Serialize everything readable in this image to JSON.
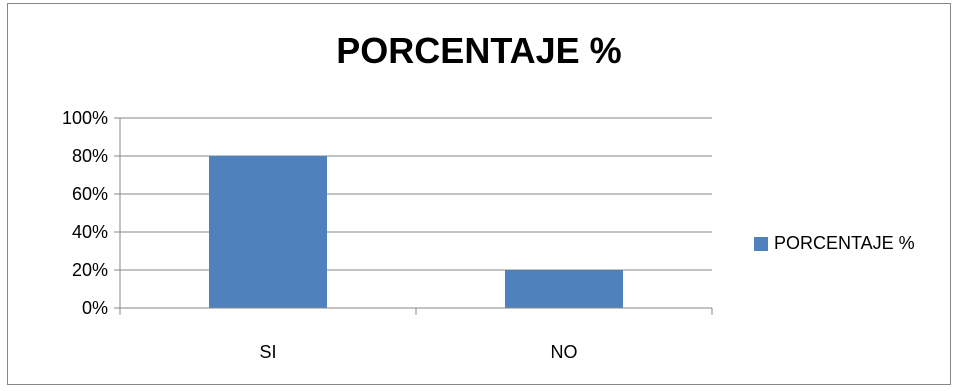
{
  "chart_data": {
    "type": "bar",
    "title": "PORCENTAJE %",
    "categories": [
      "SI",
      "NO"
    ],
    "series": [
      {
        "name": "PORCENTAJE %",
        "values": [
          80,
          20
        ],
        "color": "#4f81bd"
      }
    ],
    "ylim": [
      0,
      100
    ],
    "yticks": [
      0,
      20,
      40,
      60,
      80,
      100
    ],
    "ytick_labels": [
      "0%",
      "20%",
      "40%",
      "60%",
      "80%",
      "100%"
    ],
    "grid": true,
    "legend_position": "right"
  }
}
